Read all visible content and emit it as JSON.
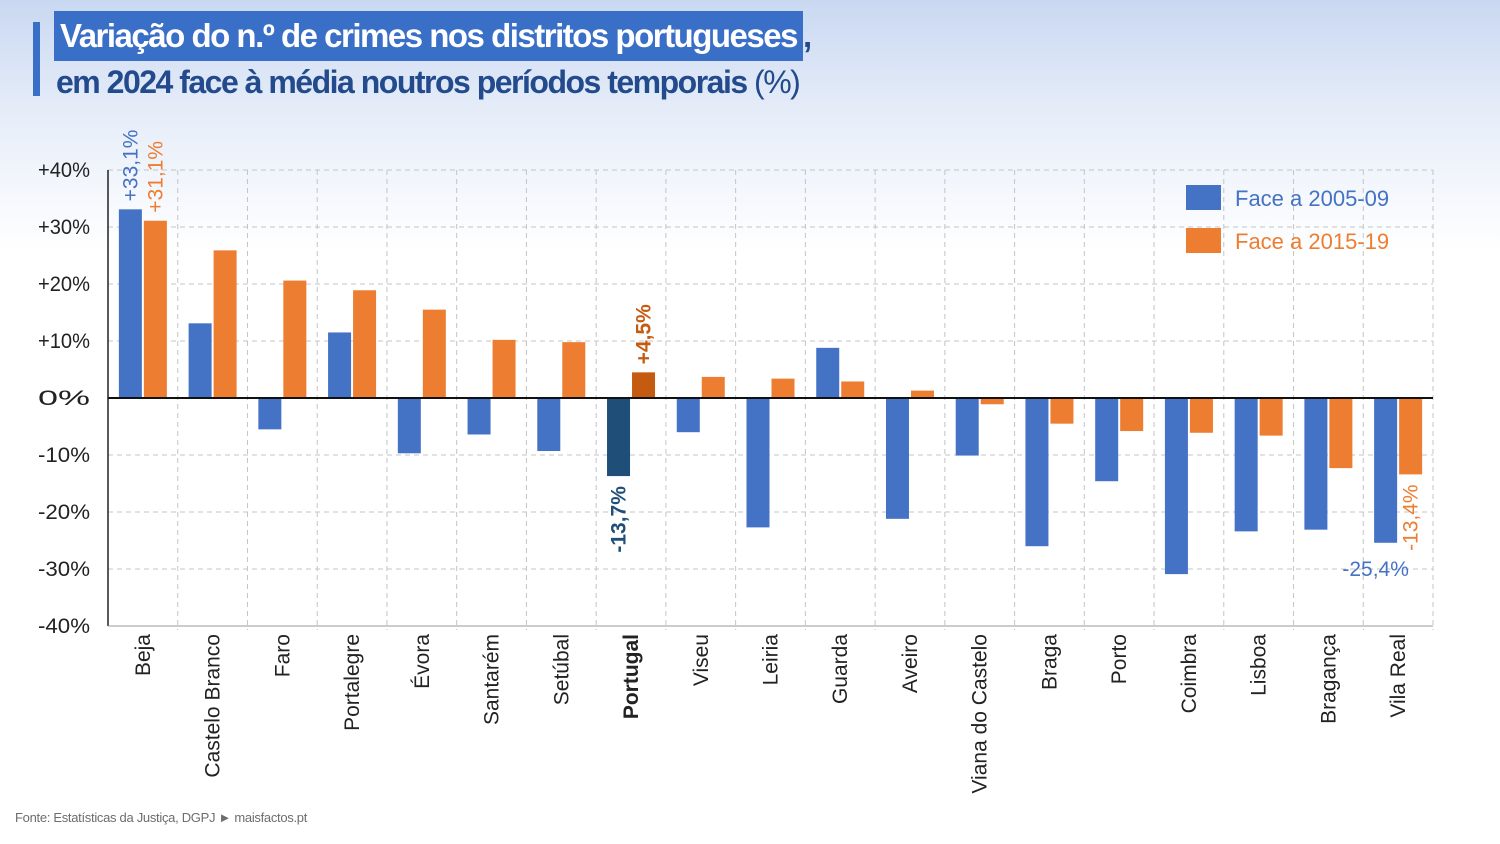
{
  "title": {
    "line1": "Variação do n.º de crimes nos distritos portugueses",
    "line1_suffix": ",",
    "line2": "em 2024 face à média noutros períodos temporais",
    "line2_unit": "(%)"
  },
  "source": "Fonte: Estatísticas da Justiça, DGPJ ► maisfactos.pt",
  "colors": {
    "blue": "#4472c4",
    "orange": "#ed7d31",
    "blue_highlight": "#1f4e79",
    "orange_highlight": "#c55a11",
    "grid": "#c4c4c4"
  },
  "chart_data": {
    "type": "bar",
    "ylim": [
      -40,
      40
    ],
    "yticks": [
      "+40%",
      "+30%",
      "+20%",
      "+10%",
      "0%",
      "-10%",
      "-20%",
      "-30%",
      "-40%"
    ],
    "ytick_values": [
      40,
      30,
      20,
      10,
      0,
      -10,
      -20,
      -30,
      -40
    ],
    "grid": true,
    "legend_position": "top-right",
    "highlight_category": "Portugal",
    "categories": [
      "Beja",
      "Castelo Branco",
      "Faro",
      "Portalegre",
      "Évora",
      "Santarém",
      "Setúbal",
      "Portugal",
      "Viseu",
      "Leiria",
      "Guarda",
      "Aveiro",
      "Viana do Castelo",
      "Braga",
      "Porto",
      "Coimbra",
      "Lisboa",
      "Bragança",
      "Vila Real"
    ],
    "series": [
      {
        "name": "Face a 2005-09",
        "values": [
          33.1,
          13.1,
          -5.5,
          11.5,
          -9.7,
          -6.4,
          -9.3,
          -13.7,
          -6.0,
          -22.7,
          8.8,
          -21.2,
          -10.1,
          -26.0,
          -14.6,
          -30.9,
          -23.4,
          -23.1,
          -25.4
        ]
      },
      {
        "name": "Face a 2015-19",
        "values": [
          31.1,
          25.9,
          20.6,
          18.9,
          15.5,
          10.2,
          9.8,
          4.5,
          3.7,
          3.4,
          2.9,
          1.3,
          -1.1,
          -4.5,
          -5.8,
          -6.1,
          -6.6,
          -12.3,
          -13.4
        ]
      }
    ],
    "annotations": [
      {
        "category": "Beja",
        "series": 0,
        "text": "+33,1%"
      },
      {
        "category": "Beja",
        "series": 1,
        "text": "+31,1%"
      },
      {
        "category": "Portugal",
        "series": 0,
        "text": "-13,7%"
      },
      {
        "category": "Portugal",
        "series": 1,
        "text": "+4,5%"
      },
      {
        "category": "Vila Real",
        "series": 0,
        "text": "-25,4%"
      },
      {
        "category": "Vila Real",
        "series": 1,
        "text": "-13,4%"
      }
    ]
  }
}
